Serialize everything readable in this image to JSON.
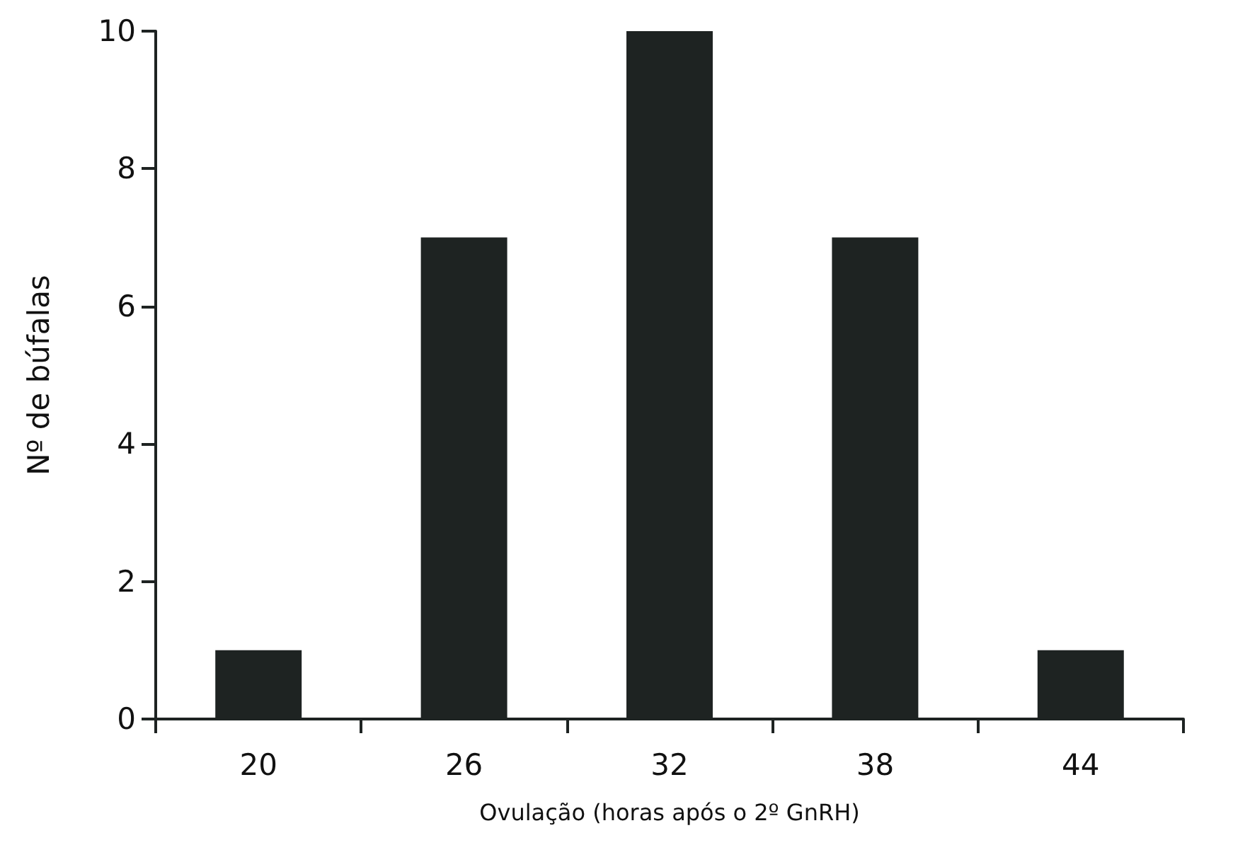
{
  "chart_data": {
    "type": "bar",
    "xlabel": "Ovulação (horas após o 2º GnRH)",
    "ylabel": "Nº de búfalas",
    "categories": [
      "20",
      "26",
      "32",
      "38",
      "44"
    ],
    "values": [
      1,
      7,
      10,
      7,
      1
    ],
    "color": "#1e2322",
    "ylim": [
      0,
      10
    ],
    "yticks": [
      0,
      2,
      4,
      6,
      8,
      10
    ],
    "grid": false
  }
}
